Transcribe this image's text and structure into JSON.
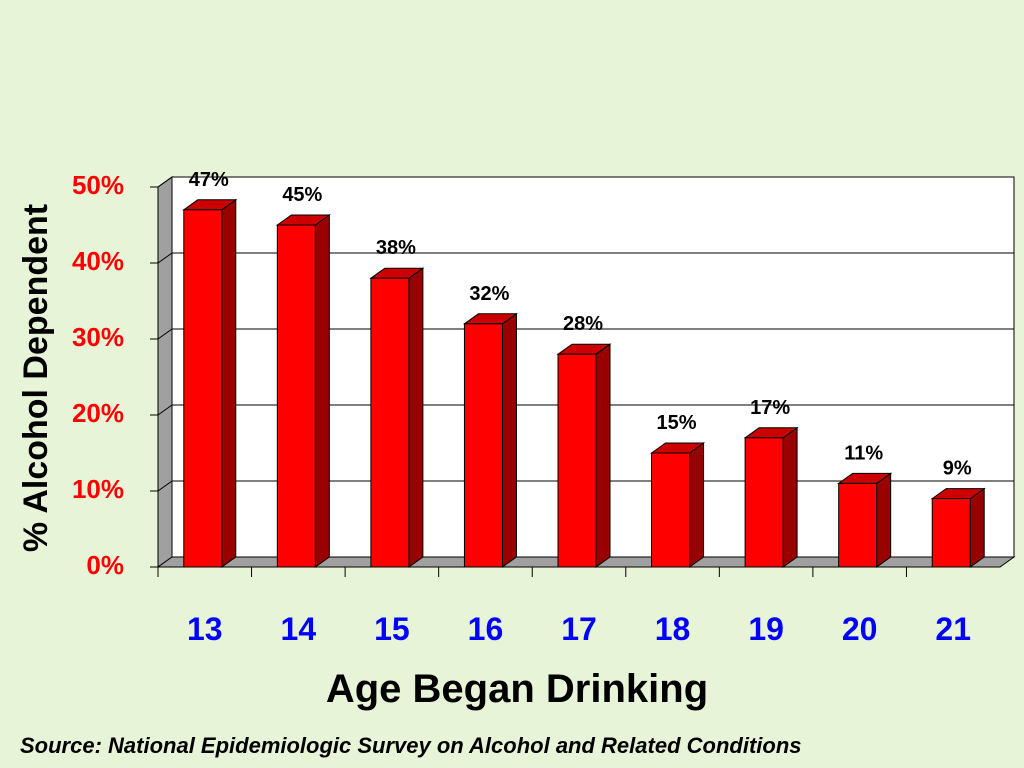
{
  "chart_data": {
    "type": "bar",
    "style": "3d",
    "categories": [
      "13",
      "14",
      "15",
      "16",
      "17",
      "18",
      "19",
      "20",
      "21"
    ],
    "values": [
      47,
      45,
      38,
      32,
      28,
      15,
      17,
      11,
      9
    ],
    "data_labels": [
      "47%",
      "45%",
      "38%",
      "32%",
      "28%",
      "15%",
      "17%",
      "11%",
      "9%"
    ],
    "title": "",
    "xlabel": "Age Began Drinking",
    "ylabel": "% Alcohol Dependent",
    "yticks": [
      "0%",
      "10%",
      "20%",
      "30%",
      "40%",
      "50%"
    ],
    "ylim": [
      0,
      50
    ],
    "grid": true,
    "legend": "none"
  },
  "source": "Source: National Epidemiologic Survey on Alcohol and Related Conditions",
  "colors": {
    "background": "#e8f4d8",
    "bar_front": "#ff0000",
    "bar_top": "#cc0000",
    "bar_side": "#990000",
    "ytick": "#ff0000",
    "xtick": "#0000ff",
    "plot_back": "#ffffff",
    "walls": "#a0a0a0"
  }
}
